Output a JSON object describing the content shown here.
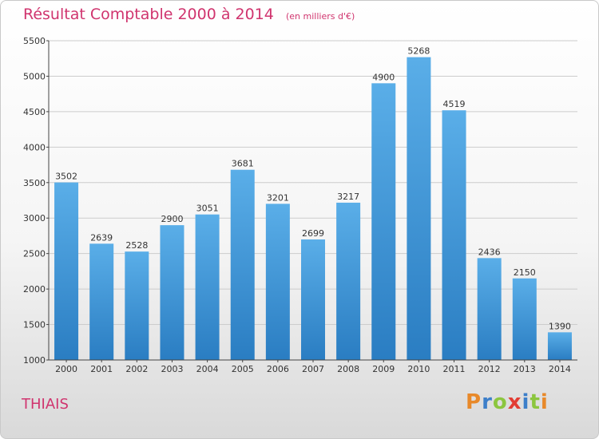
{
  "colors": {
    "accent": "#d0346e",
    "bar_top": "#5aaee8",
    "bar_bottom": "#2a7dc2",
    "axis": "#444444",
    "grid": "#cccccc"
  },
  "header": {
    "title": "Résultat Comptable 2000 à 2014",
    "subtitle": "(en milliers d'€)"
  },
  "footer": {
    "city": "THIAIS",
    "brand_letters": [
      {
        "ch": "P",
        "color": "#e8892a"
      },
      {
        "ch": "r",
        "color": "#3d7fc9"
      },
      {
        "ch": "o",
        "color": "#8cc63f"
      },
      {
        "ch": "x",
        "color": "#e23d33"
      },
      {
        "ch": "i",
        "color": "#3d7fc9"
      },
      {
        "ch": "t",
        "color": "#8cc63f"
      },
      {
        "ch": "i",
        "color": "#e8892a"
      }
    ]
  },
  "chart_data": {
    "type": "bar",
    "title": "Résultat Comptable 2000 à 2014",
    "subtitle": "(en milliers d'€)",
    "xlabel": "",
    "ylabel": "",
    "categories": [
      "2000",
      "2001",
      "2002",
      "2003",
      "2004",
      "2005",
      "2006",
      "2007",
      "2008",
      "2009",
      "2010",
      "2011",
      "2012",
      "2013",
      "2014"
    ],
    "values": [
      3502,
      2639,
      2528,
      2900,
      3051,
      3681,
      3201,
      2699,
      3217,
      4900,
      5268,
      4519,
      2436,
      2150,
      1390
    ],
    "ylim": [
      1000,
      5500
    ],
    "yticks": [
      1000,
      1500,
      2000,
      2500,
      3000,
      3500,
      4000,
      4500,
      5000,
      5500
    ],
    "grid": "horizontal",
    "data_labels": true
  }
}
